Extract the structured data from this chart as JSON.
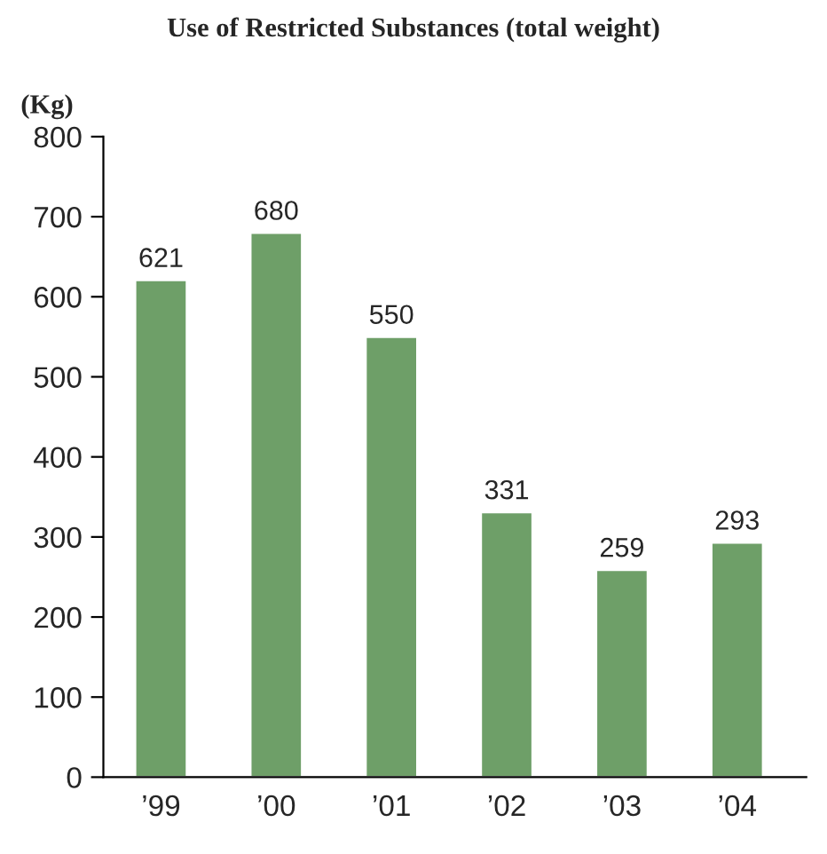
{
  "chart_data": {
    "type": "bar",
    "title": "Use of Restricted Substances (total weight)",
    "ylabel": "(Kg)",
    "categories": [
      "’99",
      "’00",
      "’01",
      "’02",
      "’03",
      "’04"
    ],
    "values": [
      621,
      680,
      550,
      331,
      259,
      293
    ],
    "color": "#6e9f68",
    "ylim": [
      0,
      800
    ],
    "yticks": [
      0,
      100,
      200,
      300,
      400,
      500,
      600,
      700,
      800
    ],
    "grid": false,
    "data_labels": true
  }
}
